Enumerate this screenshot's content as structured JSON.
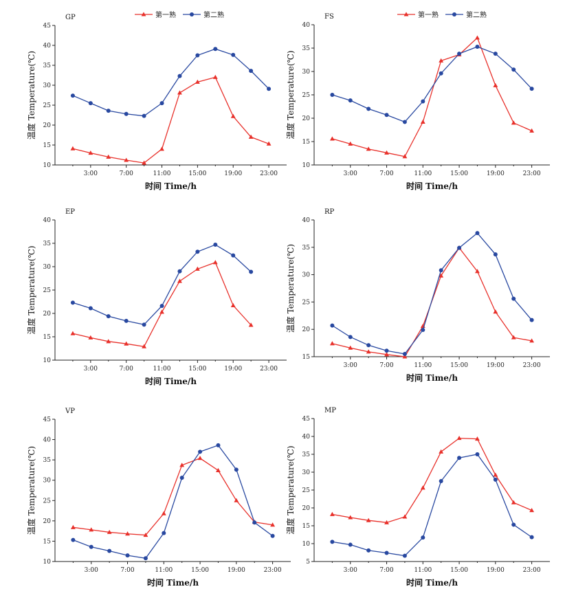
{
  "legend": {
    "series1": "第一熟",
    "series2": "第二熟"
  },
  "colors": {
    "series1": "#e8302a",
    "series2": "#2848a0"
  },
  "chart_data": [
    {
      "type": "line",
      "title": "GP",
      "xlabel": "时间  Time/h",
      "ylabel": "温度  Temperature(℃)",
      "x": [
        1,
        3,
        5,
        7,
        9,
        11,
        13,
        15,
        17,
        19,
        21,
        23
      ],
      "xticks": [
        "3:00",
        "7:00",
        "11:00",
        "15:00",
        "19:00",
        "23:00"
      ],
      "ylim": [
        10,
        45
      ],
      "yticks": [
        10,
        15,
        20,
        25,
        30,
        35,
        40,
        45
      ],
      "series": [
        {
          "name": "第一熟",
          "values": [
            14.1,
            13.0,
            12.0,
            11.2,
            10.5,
            14.0,
            28.1,
            30.8,
            32.0,
            22.2,
            17.0,
            15.3
          ]
        },
        {
          "name": "第二熟",
          "values": [
            27.4,
            25.5,
            23.6,
            22.8,
            22.3,
            25.5,
            32.3,
            37.5,
            39.1,
            37.6,
            33.6,
            29.1
          ]
        }
      ]
    },
    {
      "type": "line",
      "title": "FS",
      "xlabel": "时间  Time/h",
      "ylabel": "温度  Temperature(℃)",
      "x": [
        1,
        3,
        5,
        7,
        9,
        11,
        13,
        15,
        17,
        19,
        21,
        23
      ],
      "xticks": [
        "3:00",
        "7:00",
        "11:00",
        "15:00",
        "19:00",
        "23:00"
      ],
      "ylim": [
        10,
        40
      ],
      "yticks": [
        10,
        15,
        20,
        25,
        30,
        35,
        40
      ],
      "series": [
        {
          "name": "第一熟",
          "values": [
            15.6,
            14.5,
            13.4,
            12.6,
            11.8,
            19.2,
            32.3,
            33.6,
            37.2,
            27.0,
            19.0,
            17.3
          ]
        },
        {
          "name": "第二熟",
          "values": [
            25.0,
            23.8,
            22.0,
            20.7,
            19.2,
            23.6,
            29.6,
            33.8,
            35.3,
            33.8,
            30.4,
            26.3
          ]
        }
      ]
    },
    {
      "type": "line",
      "title": "EP",
      "xlabel": "时间  Time/h",
      "ylabel": "温度  Temperature(℃)",
      "x": [
        1,
        3,
        5,
        7,
        9,
        11,
        13,
        15,
        17,
        19,
        21
      ],
      "xticks": [
        "3:00",
        "7:00",
        "11:00",
        "15:00",
        "19:00",
        "23:00"
      ],
      "ylim": [
        10,
        40
      ],
      "yticks": [
        10,
        15,
        20,
        25,
        30,
        35,
        40
      ],
      "series": [
        {
          "name": "第一熟",
          "values": [
            15.7,
            14.8,
            14.0,
            13.5,
            12.9,
            20.3,
            26.9,
            29.5,
            30.9,
            21.7,
            17.5
          ]
        },
        {
          "name": "第二熟",
          "values": [
            22.3,
            21.1,
            19.4,
            18.4,
            17.6,
            21.6,
            29.0,
            33.2,
            34.7,
            32.4,
            28.9
          ]
        }
      ]
    },
    {
      "type": "line",
      "title": "RP",
      "xlabel": "时间  Time/h",
      "ylabel": "温度  Temperature(℃)",
      "x": [
        1,
        3,
        5,
        7,
        9,
        11,
        13,
        15,
        17,
        19,
        21,
        23
      ],
      "xticks": [
        "3:00",
        "7:00",
        "11:00",
        "15:00",
        "19:00",
        "23:00"
      ],
      "ylim": [
        15,
        40
      ],
      "yticks": [
        15,
        20,
        25,
        30,
        35,
        40
      ],
      "series": [
        {
          "name": "第一熟",
          "values": [
            17.4,
            16.6,
            15.9,
            15.4,
            15.0,
            20.6,
            29.8,
            34.9,
            30.6,
            23.2,
            18.5,
            17.9
          ]
        },
        {
          "name": "第二熟",
          "values": [
            20.7,
            18.6,
            17.1,
            16.1,
            15.5,
            19.9,
            30.8,
            34.9,
            37.6,
            33.7,
            25.6,
            21.7
          ]
        }
      ]
    },
    {
      "type": "line",
      "title": "VP",
      "xlabel": "时间  Time/h",
      "ylabel": "温度  Temperature(℃)",
      "x": [
        1,
        3,
        5,
        7,
        9,
        11,
        13,
        15,
        17,
        19,
        21,
        23
      ],
      "xticks": [
        "3:00",
        "7:00",
        "11:00",
        "15:00",
        "19:00",
        "23:00"
      ],
      "ylim": [
        10,
        45
      ],
      "yticks": [
        10,
        15,
        20,
        25,
        30,
        35,
        40,
        45
      ],
      "series": [
        {
          "name": "第一熟",
          "values": [
            18.4,
            17.8,
            17.2,
            16.8,
            16.5,
            21.8,
            33.7,
            35.4,
            32.4,
            25.0,
            19.7,
            19.0
          ]
        },
        {
          "name": "第二熟",
          "values": [
            15.3,
            13.6,
            12.6,
            11.5,
            10.8,
            17.0,
            30.6,
            37.0,
            38.6,
            32.6,
            19.6,
            16.3
          ]
        }
      ]
    },
    {
      "type": "line",
      "title": "MP",
      "xlabel": "时间  Time/h",
      "ylabel": "温度  Temperature(℃)",
      "x": [
        1,
        3,
        5,
        7,
        9,
        11,
        13,
        15,
        17,
        19,
        21,
        23
      ],
      "xticks": [
        "3:00",
        "7:00",
        "11:00",
        "15:00",
        "19:00",
        "23:00"
      ],
      "ylim": [
        5,
        45
      ],
      "yticks": [
        5,
        10,
        15,
        20,
        25,
        30,
        35,
        40,
        45
      ],
      "series": [
        {
          "name": "第一熟",
          "values": [
            18.2,
            17.3,
            16.5,
            15.9,
            17.5,
            25.6,
            35.7,
            39.5,
            39.3,
            29.2,
            21.5,
            19.3
          ]
        },
        {
          "name": "第二熟",
          "values": [
            10.5,
            9.7,
            8.1,
            7.4,
            6.6,
            11.7,
            27.5,
            34.0,
            35.0,
            27.9,
            15.3,
            11.8
          ]
        }
      ]
    }
  ]
}
